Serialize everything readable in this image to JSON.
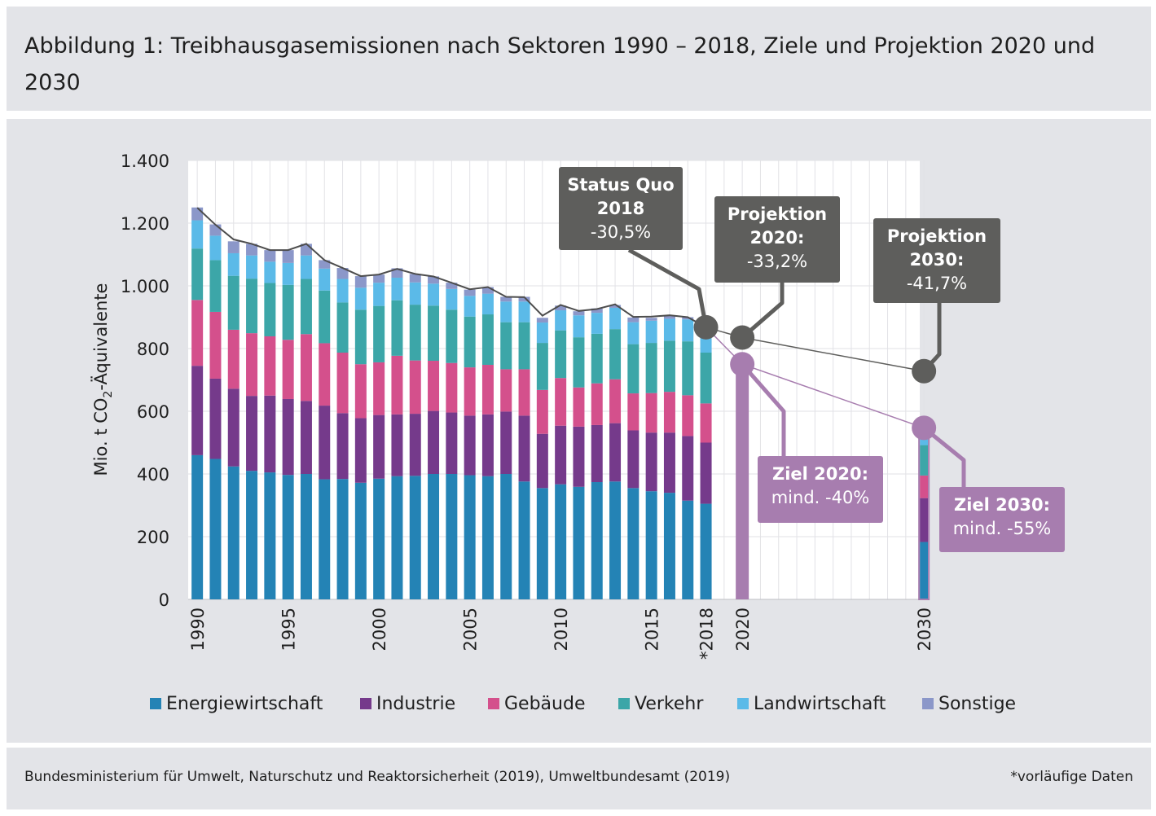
{
  "title": "Abbildung 1: Treibhausgasemissionen nach Sektoren 1990 – 2018, Ziele und Projektion 2020 und 2030",
  "source": "Bundesministerium für Umwelt, Naturschutz und Reaktorsicherheit (2019), Umweltbundesamt (2019)",
  "footnote": "*vorläufige Daten",
  "chart_data": {
    "type": "bar",
    "stacked": true,
    "ylabel_parts": {
      "pre": "Mio. t CO",
      "sub": "2",
      "post": "-Äquivalente"
    },
    "ylim": [
      0,
      1400
    ],
    "yticks": [
      0,
      200,
      400,
      600,
      800,
      1000,
      1200,
      1400
    ],
    "ytick_labels": [
      "0",
      "200",
      "400",
      "600",
      "800",
      "1.000",
      "1.200",
      "1.400"
    ],
    "grid": true,
    "xtick_labels": [
      {
        "year": 1990,
        "label": "1990"
      },
      {
        "year": 1995,
        "label": "1995"
      },
      {
        "year": 2000,
        "label": "2000"
      },
      {
        "year": 2005,
        "label": "2005"
      },
      {
        "year": 2010,
        "label": "2010"
      },
      {
        "year": 2015,
        "label": "2015"
      },
      {
        "year": 2018,
        "label": "*2018"
      },
      {
        "year": 2020,
        "label": "2020"
      },
      {
        "year": 2030,
        "label": "2030"
      }
    ],
    "categories": [
      1990,
      1991,
      1992,
      1993,
      1994,
      1995,
      1996,
      1997,
      1998,
      1999,
      2000,
      2001,
      2002,
      2003,
      2004,
      2005,
      2006,
      2007,
      2008,
      2009,
      2010,
      2011,
      2012,
      2013,
      2014,
      2015,
      2016,
      2017,
      2018,
      2030
    ],
    "series": [
      {
        "name": "Energiewirtschaft",
        "color": "#2483b5",
        "values": [
          460,
          448,
          424,
          410,
          405,
          397,
          400,
          383,
          384,
          372,
          385,
          393,
          394,
          400,
          400,
          396,
          393,
          400,
          376,
          355,
          367,
          359,
          374,
          376,
          355,
          345,
          340,
          315,
          305,
          183
        ]
      },
      {
        "name": "Industrie",
        "color": "#753a8b",
        "values": [
          285,
          256,
          248,
          239,
          245,
          242,
          233,
          235,
          210,
          206,
          203,
          197,
          198,
          201,
          196,
          190,
          197,
          199,
          210,
          173,
          187,
          192,
          182,
          186,
          184,
          187,
          192,
          206,
          195,
          140
        ]
      },
      {
        "name": "Gebäude",
        "color": "#d4508c",
        "values": [
          210,
          213,
          188,
          200,
          189,
          189,
          213,
          199,
          193,
          172,
          168,
          187,
          170,
          160,
          158,
          154,
          158,
          135,
          148,
          140,
          152,
          125,
          133,
          140,
          118,
          126,
          130,
          130,
          125,
          72
        ]
      },
      {
        "name": "Verkehr",
        "color": "#3ca6a8",
        "values": [
          164,
          165,
          172,
          174,
          170,
          175,
          176,
          168,
          160,
          174,
          180,
          177,
          178,
          176,
          170,
          162,
          161,
          150,
          150,
          150,
          152,
          160,
          158,
          160,
          157,
          160,
          163,
          172,
          162,
          97
        ]
      },
      {
        "name": "Landwirtschaft",
        "color": "#5bbae8",
        "values": [
          90,
          78,
          72,
          74,
          68,
          70,
          75,
          70,
          75,
          70,
          74,
          72,
          71,
          70,
          66,
          66,
          66,
          66,
          66,
          65,
          64,
          70,
          67,
          68,
          70,
          71,
          70,
          70,
          70,
          57
        ]
      },
      {
        "name": "Sonstige",
        "color": "#8b97c9",
        "values": [
          41,
          36,
          38,
          37,
          37,
          41,
          37,
          27,
          35,
          37,
          26,
          30,
          27,
          23,
          20,
          20,
          21,
          15,
          15,
          15,
          15,
          13,
          14,
          9,
          15,
          9,
          10,
          7,
          11,
          0
        ]
      }
    ],
    "bar_2020": {
      "year": 2020,
      "value": 750,
      "color": "#a77daf"
    },
    "total_line": {
      "color": "#4d4d4d",
      "values": [
        1249,
        1195,
        1148,
        1134,
        1114,
        1114,
        1134,
        1082,
        1057,
        1031,
        1036,
        1054,
        1038,
        1030,
        1010,
        989,
        996,
        965,
        964,
        905,
        939,
        920,
        926,
        941,
        901,
        902,
        906,
        900,
        868
      ]
    },
    "projection_path": {
      "color": "#5e5e5c",
      "points": [
        {
          "year": 2018,
          "value": 868
        },
        {
          "year": 2020,
          "value": 835
        },
        {
          "year": 2030,
          "value": 728
        }
      ]
    },
    "target_path": {
      "color": "#a77daf",
      "points": [
        {
          "year": 2018,
          "value": 868
        },
        {
          "year": 2020,
          "value": 750
        },
        {
          "year": 2030,
          "value": 547
        }
      ]
    },
    "annotations": [
      {
        "id": "status-quo",
        "style": "dark",
        "bold_lines": [
          "Status Quo",
          "2018"
        ],
        "value": "-30,5%",
        "target_year": 2018,
        "target_value": 868
      },
      {
        "id": "projektion-2020",
        "style": "dark",
        "bold_lines": [
          "Projektion",
          "2020:"
        ],
        "value": "-33,2%",
        "target_year": 2020,
        "target_value": 835
      },
      {
        "id": "projektion-2030",
        "style": "dark",
        "bold_lines": [
          "Projektion",
          "2030:"
        ],
        "value": "-41,7%",
        "target_year": 2030,
        "target_value": 728
      },
      {
        "id": "ziel-2020",
        "style": "light",
        "bold_lines": [
          "Ziel 2020:"
        ],
        "value": "mind. -40%",
        "target_year": 2020,
        "target_value": 750
      },
      {
        "id": "ziel-2030",
        "style": "light",
        "bold_lines": [
          "Ziel 2030:"
        ],
        "value": "mind. -55%",
        "target_year": 2030,
        "target_value": 547
      }
    ],
    "annotation_colors": {
      "dark": "#5e5e5c",
      "light": "#a77daf",
      "text": "#ffffff"
    },
    "legend_position": "bottom"
  }
}
